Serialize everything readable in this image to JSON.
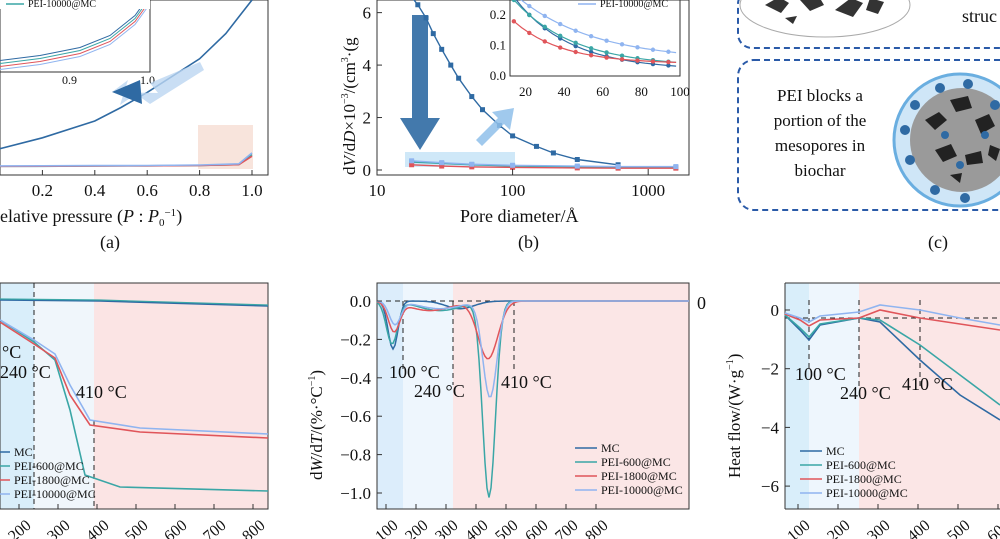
{
  "colors": {
    "mc": "#2f6aa3",
    "p600": "#3aa6a6",
    "p1800": "#e0555a",
    "p10000": "#8fb4f0",
    "shadeBlue": "#cfe8f8",
    "shadePink": "#f8dcdc",
    "dash": "#222"
  },
  "panels": {
    "a": "(a)",
    "b": "(b)",
    "c": "(c)"
  },
  "chart_data": [
    {
      "id": "a",
      "type": "line",
      "xlabel": "Relative pressure (P : P0−1)",
      "xticks": [
        "0.2",
        "0.4",
        "0.6",
        "0.8",
        "1.0"
      ],
      "xlim": [
        0.0,
        1.0
      ],
      "inset": {
        "xticks": [
          "0.9",
          "1.0"
        ],
        "legend": [
          "PEI-10000@MC"
        ]
      },
      "series": [
        {
          "name": "MC",
          "x": [
            0.0,
            0.2,
            0.4,
            0.5,
            0.6,
            0.8,
            0.9,
            0.95,
            1.0
          ],
          "y": [
            0.1,
            0.18,
            0.28,
            0.36,
            0.45,
            0.65,
            0.8,
            0.9,
            1.0
          ]
        },
        {
          "name": "PEI-600@MC",
          "x": [
            0.0,
            0.2,
            0.4,
            0.6,
            0.8,
            0.95,
            1.0
          ],
          "y": [
            0.01,
            0.01,
            0.012,
            0.013,
            0.015,
            0.02,
            0.08
          ]
        },
        {
          "name": "PEI-1800@MC",
          "x": [
            0.0,
            0.2,
            0.4,
            0.6,
            0.8,
            0.95,
            1.0
          ],
          "y": [
            0.01,
            0.011,
            0.012,
            0.013,
            0.015,
            0.02,
            0.07
          ]
        },
        {
          "name": "PEI-10000@MC",
          "x": [
            0.0,
            0.2,
            0.4,
            0.6,
            0.8,
            0.95,
            1.0
          ],
          "y": [
            0.012,
            0.013,
            0.014,
            0.015,
            0.018,
            0.025,
            0.09
          ]
        }
      ]
    },
    {
      "id": "b",
      "type": "line",
      "xlabel": "Pore diameter/Å",
      "ylabel": "dV/dD×10−3/(cm3·(g",
      "xscale": "log",
      "xticks": [
        "10",
        "100",
        "1000"
      ],
      "yticks": [
        "0",
        "2",
        "4",
        "6"
      ],
      "xlim": [
        10,
        2000
      ],
      "ylim": [
        0,
        7
      ],
      "series": [
        {
          "name": "MC",
          "x": [
            18,
            20,
            23,
            26,
            30,
            35,
            40,
            50,
            60,
            80,
            100,
            150,
            200,
            300,
            600
          ],
          "y": [
            6.6,
            6.3,
            5.8,
            5.2,
            4.6,
            4.0,
            3.5,
            2.8,
            2.3,
            1.7,
            1.3,
            0.9,
            0.65,
            0.4,
            0.2
          ]
        },
        {
          "name": "PEI-600@MC",
          "x": [
            18,
            30,
            50,
            100,
            300,
            600,
            1600
          ],
          "y": [
            0.3,
            0.25,
            0.2,
            0.15,
            0.12,
            0.1,
            0.1
          ]
        },
        {
          "name": "PEI-1800@MC",
          "x": [
            18,
            30,
            50,
            100,
            300,
            600,
            1600
          ],
          "y": [
            0.2,
            0.15,
            0.12,
            0.1,
            0.08,
            0.07,
            0.07
          ]
        },
        {
          "name": "PEI-10000@MC",
          "x": [
            18,
            30,
            50,
            100,
            300,
            600,
            1600
          ],
          "y": [
            0.35,
            0.28,
            0.22,
            0.18,
            0.15,
            0.13,
            0.13
          ]
        }
      ],
      "inset": {
        "xticks": [
          "20",
          "40",
          "60",
          "80",
          "100"
        ],
        "yticks": [
          "0.0",
          "0.1",
          "0.2"
        ],
        "legend": [
          "PEI-10000@MC"
        ]
      }
    },
    {
      "id": "d",
      "type": "line",
      "xticks": [
        "100",
        "200",
        "300",
        "400",
        "500",
        "600",
        "700",
        "800"
      ],
      "annotations": [
        "°C",
        "240 °C",
        "410 °C"
      ],
      "legend": [
        "MC",
        "PEI-600@MC",
        "PEI-1800@MC",
        "PEI-10000@MC"
      ]
    },
    {
      "id": "e",
      "type": "line",
      "ylabel": "dW/dT/(%·°C−1)",
      "yticks": [
        "0.0",
        "−0.2",
        "−0.4",
        "−0.6",
        "−0.8",
        "−1.0"
      ],
      "righttick": "0",
      "xticks": [
        "100",
        "200",
        "300",
        "400",
        "500",
        "600",
        "700",
        "800"
      ],
      "annotations": [
        "100 °C",
        "240 °C",
        "410 °C"
      ],
      "legend": [
        "MC",
        "PEI-600@MC",
        "PEI-1800@MC",
        "PEI-10000@MC"
      ]
    },
    {
      "id": "f",
      "type": "line",
      "ylabel": "Heat flow/(W·g−1)",
      "yticks": [
        "0",
        "−2",
        "−4",
        "−6"
      ],
      "xticks": [
        "100",
        "200",
        "300",
        "400",
        "500",
        "600"
      ],
      "annotations": [
        "100 °C",
        "240 °C",
        "410 °C"
      ],
      "legend": [
        "MC",
        "PEI-600@MC",
        "PEI-1800@MC",
        "PEI-10000@MC"
      ]
    }
  ],
  "diagram_c": {
    "top_text": "struc",
    "box_lines": [
      "PEI blocks a",
      "portion of  the",
      "mesopores in",
      "biochar"
    ]
  }
}
